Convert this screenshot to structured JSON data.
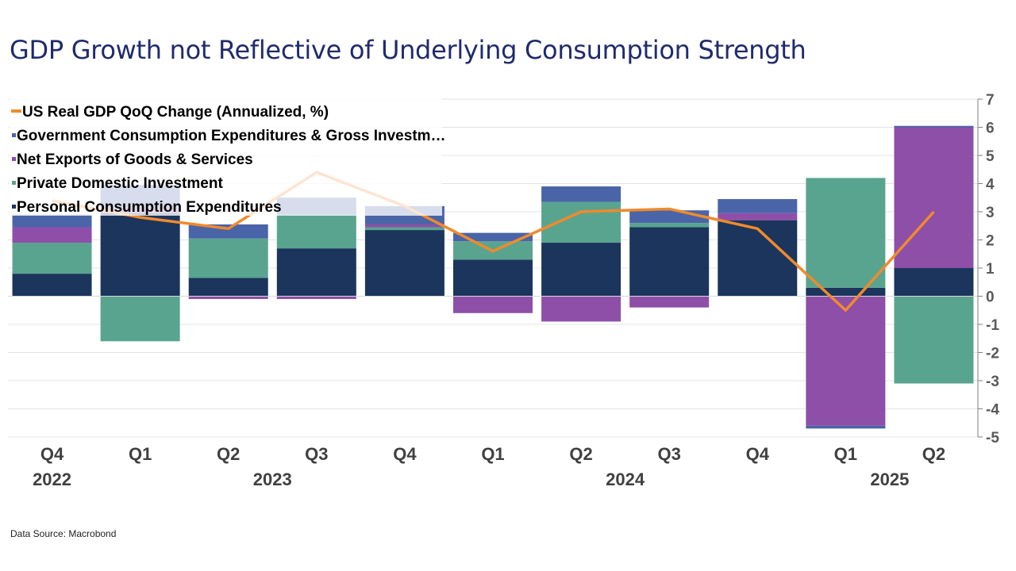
{
  "slide": {
    "title": "GDP Growth not Reflective of Underlying Consumption Strength",
    "source": "Data Source: Macrobond"
  },
  "chart_data": {
    "type": "bar",
    "stacked": true,
    "title": "GDP Growth not Reflective of Underlying Consumption Strength",
    "ylim": [
      -5,
      7
    ],
    "yticks": [
      7,
      6,
      5,
      4,
      3,
      2,
      1,
      0,
      -1,
      -2,
      -3,
      -4,
      -5
    ],
    "y_axis_side": "right",
    "categories": [
      "Q4",
      "Q1",
      "Q2",
      "Q3",
      "Q4",
      "Q1",
      "Q2",
      "Q3",
      "Q4",
      "Q1",
      "Q2"
    ],
    "year_labels": [
      {
        "label": "2022",
        "index": 0
      },
      {
        "label": "2023",
        "index": 2.5
      },
      {
        "label": "2024",
        "index": 6.5
      },
      {
        "label": "2025",
        "index": 9.5
      }
    ],
    "series": [
      {
        "name": "Personal Consumption Expenditures",
        "color": "#1b355c",
        "values": [
          0.8,
          2.95,
          0.65,
          1.7,
          2.35,
          1.3,
          1.9,
          2.45,
          2.7,
          0.3,
          1.0
        ]
      },
      {
        "name": "Private Domestic Investment",
        "color": "#59a48f",
        "values": [
          1.1,
          -1.6,
          1.4,
          1.2,
          0.1,
          0.65,
          1.45,
          0.15,
          0,
          3.9,
          -3.1
        ]
      },
      {
        "name": "Net Exports of Goods & Services",
        "color": "#8e4fa8",
        "values": [
          0.55,
          0.2,
          -0.1,
          -0.1,
          0.1,
          -0.6,
          -0.9,
          -0.4,
          0.25,
          -4.6,
          5.0
        ]
      },
      {
        "name": "Government Consumption Expenditures & Gross Investment",
        "color": "#4a64a8",
        "values": [
          0.45,
          0.8,
          0.5,
          0.6,
          0.65,
          0.3,
          0.55,
          0.45,
          0.5,
          -0.1,
          0.05
        ]
      }
    ],
    "line": {
      "name": "US Real GDP QoQ Change (Annualized, %)",
      "color": "#f08a2c",
      "values": [
        3.4,
        2.8,
        2.4,
        4.4,
        3.2,
        1.6,
        3.0,
        3.1,
        2.4,
        -0.5,
        3.0
      ]
    },
    "legend": [
      {
        "label": "US Real GDP QoQ Change (Annualized, %)",
        "color": "#f08a2c",
        "marker": "line"
      },
      {
        "label": "Government Consumption Expenditures & Gross Investm…",
        "color": "#4a64a8",
        "marker": "square"
      },
      {
        "label": "Net Exports of Goods & Services",
        "color": "#8e4fa8",
        "marker": "square"
      },
      {
        "label": "Private Domestic Investment",
        "color": "#59a48f",
        "marker": "square"
      },
      {
        "label": "Personal Consumption Expenditures",
        "color": "#1b355c",
        "marker": "square"
      }
    ],
    "legend_position": "top-left"
  }
}
